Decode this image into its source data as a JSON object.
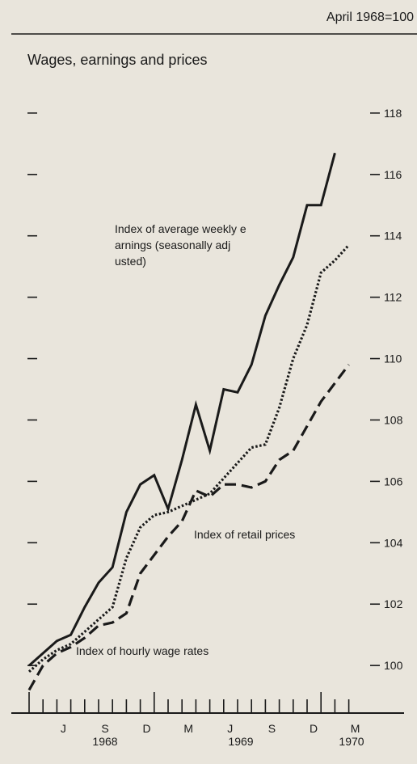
{
  "chart_data": {
    "type": "line",
    "title": "Wages, earnings and prices",
    "subtitle": "April 1968=100",
    "categories": [
      null,
      null,
      "J",
      null,
      null,
      "S",
      null,
      null,
      "D",
      null,
      null,
      "M",
      null,
      null,
      "J",
      null,
      null,
      "S",
      null,
      null,
      "D",
      null,
      null,
      "M"
    ],
    "year_labels": [
      "1968",
      "1969",
      "1970"
    ],
    "series": [
      {
        "name": "Index of average weekly earnings (seasonally adjusted)",
        "color": "#1a1a1a",
        "style": "solid",
        "values": [
          100.0,
          100.4,
          100.8,
          101.0,
          101.9,
          102.7,
          103.2,
          105.0,
          105.9,
          106.2,
          105.1,
          106.7,
          108.5,
          107.0,
          109.0,
          108.9,
          109.8,
          111.4,
          112.4,
          113.3,
          115.0,
          115.0,
          116.7,
          null
        ]
      },
      {
        "name": "Index of retail prices",
        "color": "#1a1a1a",
        "style": "dotted",
        "values": [
          99.8,
          100.2,
          100.5,
          100.7,
          101.1,
          101.5,
          101.9,
          103.5,
          104.5,
          104.9,
          105.0,
          105.2,
          105.4,
          105.6,
          106.1,
          106.6,
          107.1,
          107.2,
          108.4,
          110.0,
          111.1,
          112.8,
          113.2,
          113.7
        ]
      },
      {
        "name": "Index of hourly wage rates",
        "color": "#1a1a1a",
        "style": "dashed",
        "values": [
          99.2,
          100.0,
          100.4,
          100.6,
          100.9,
          101.3,
          101.4,
          101.7,
          103.0,
          103.6,
          104.2,
          104.7,
          105.7,
          105.5,
          105.9,
          105.9,
          105.8,
          106.0,
          106.7,
          107.0,
          107.8,
          108.6,
          109.2,
          109.8
        ]
      }
    ],
    "ylim": [
      98.45,
      119.05
    ],
    "yticks": [
      100,
      102,
      104,
      106,
      108,
      110,
      112,
      114,
      116,
      118
    ]
  }
}
